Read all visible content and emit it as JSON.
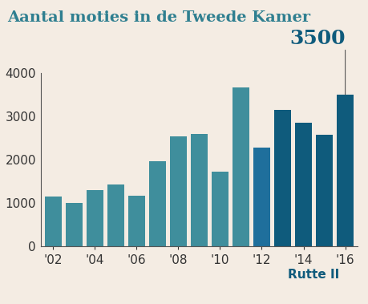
{
  "chart_data": {
    "type": "bar",
    "title": "Aantal moties in de Tweede Kamer",
    "categories": [
      "'02",
      null,
      "'04",
      null,
      "'06",
      null,
      "'08",
      null,
      "'10",
      null,
      "'12",
      null,
      "'14",
      null,
      "'16"
    ],
    "values": [
      1150,
      1000,
      1300,
      1430,
      1160,
      1970,
      2540,
      2600,
      1720,
      3660,
      2280,
      3150,
      2860,
      2580,
      3500
    ],
    "colors": [
      "#3f8e9c",
      "#3f8e9c",
      "#3f8e9c",
      "#3f8e9c",
      "#3f8e9c",
      "#3f8e9c",
      "#3f8e9c",
      "#3f8e9c",
      "#3f8e9c",
      "#3f8e9c",
      "#1f6f9c",
      "#0f5b7c",
      "#0f5b7c",
      "#0f5b7c",
      "#0f5b7c"
    ],
    "ylim": [
      0,
      4000
    ],
    "yticks": [
      0,
      1000,
      2000,
      3000,
      4000
    ],
    "grid": false,
    "annotations": [
      {
        "text": "3500",
        "index": 14
      },
      {
        "text": "Rutte II",
        "first": 11,
        "last": 14
      }
    ]
  }
}
